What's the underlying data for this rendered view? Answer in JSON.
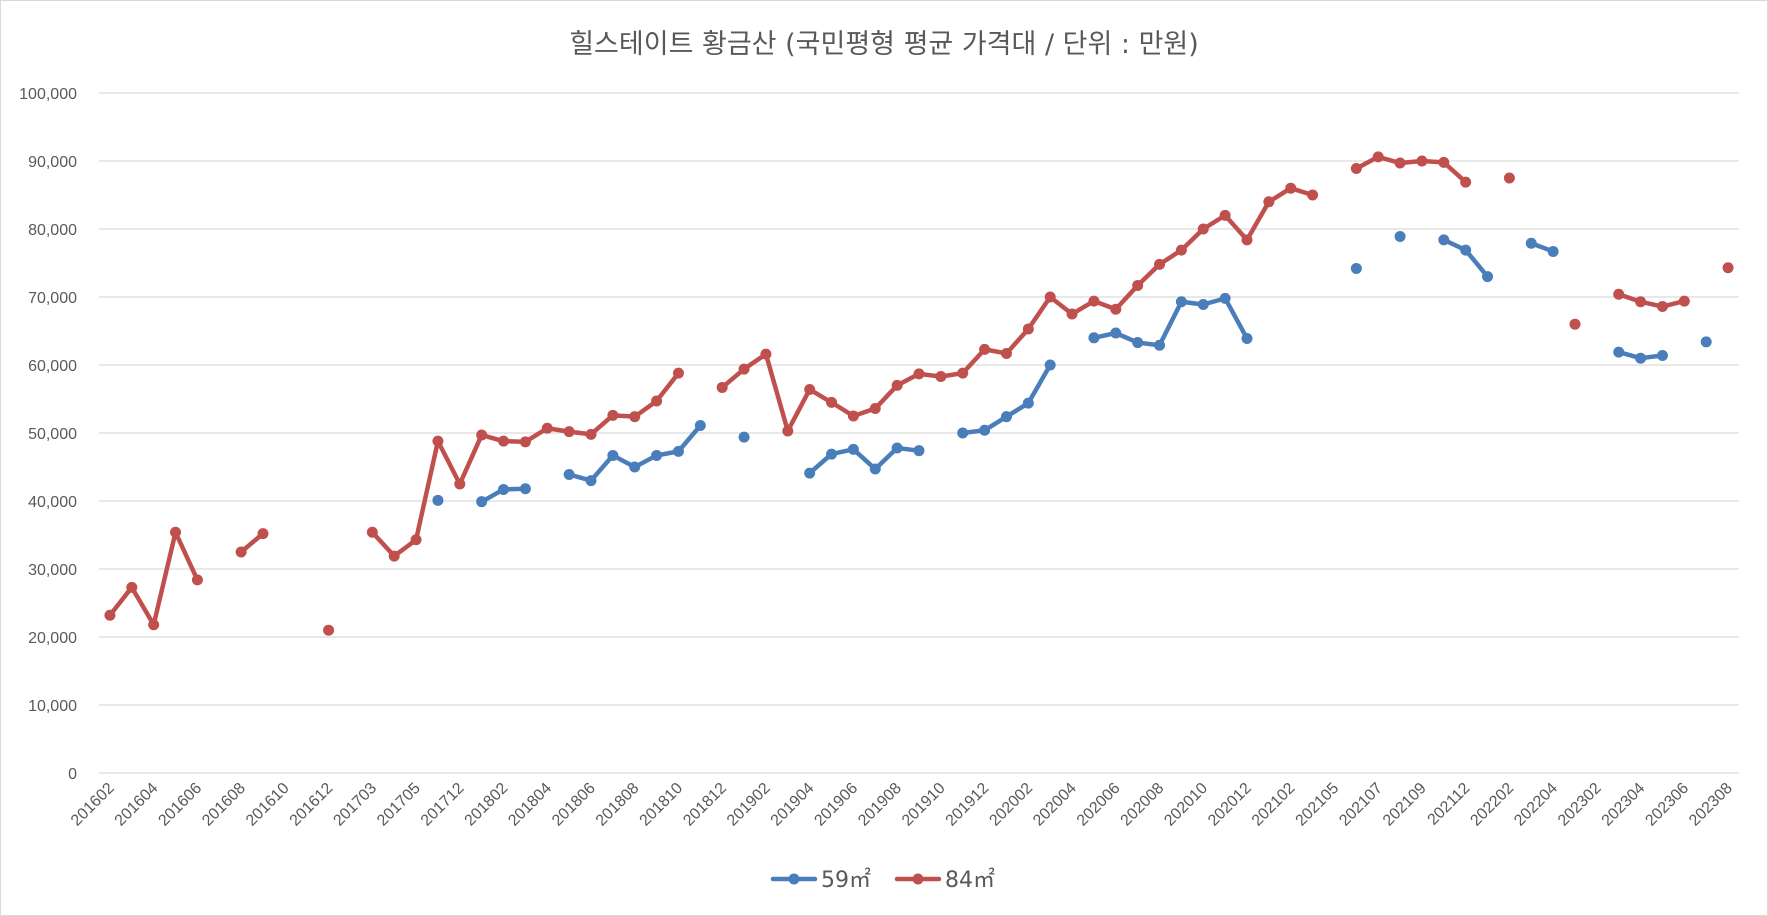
{
  "chart_data": {
    "type": "line",
    "title": "힐스테이트 황금산 (국민평형 평균 가격대 / 단위 : 만원)",
    "xlabel": "",
    "ylabel": "",
    "ylim": [
      0,
      100000
    ],
    "yticks": [
      0,
      10000,
      20000,
      30000,
      40000,
      50000,
      60000,
      70000,
      80000,
      90000,
      100000
    ],
    "ytick_labels": [
      "0",
      "10,000",
      "20,000",
      "30,000",
      "40,000",
      "50,000",
      "60,000",
      "70,000",
      "80,000",
      "90,000",
      "100,000"
    ],
    "grid": true,
    "legend_position": "bottom",
    "categories": [
      "201602",
      "201603",
      "201604",
      "201605",
      "201606",
      "201607",
      "201608",
      "201609",
      "201610",
      "201611",
      "201612",
      "201701",
      "201703",
      "201704",
      "201705",
      "201706",
      "201712",
      "201801",
      "201802",
      "201803",
      "201804",
      "201805",
      "201806",
      "201807",
      "201808",
      "201809",
      "201810",
      "201811",
      "201812",
      "201901",
      "201902",
      "201903",
      "201904",
      "201905",
      "201906",
      "201907",
      "201908",
      "201909",
      "201910",
      "201911",
      "201912",
      "202001",
      "202002",
      "202003",
      "202004",
      "202005",
      "202006",
      "202007",
      "202008",
      "202009",
      "202010",
      "202011",
      "202012",
      "202101",
      "202102",
      "202103",
      "202105",
      "202106",
      "202107",
      "202108",
      "202109",
      "202110",
      "202112",
      "202201",
      "202202",
      "202203",
      "202204",
      "202205",
      "202302",
      "202303",
      "202304",
      "202305",
      "202306",
      "202307",
      "202308"
    ],
    "xtick_labels": [
      "201602",
      "201604",
      "201606",
      "201608",
      "201610",
      "201612",
      "201703",
      "201705",
      "201712",
      "201802",
      "201804",
      "201806",
      "201808",
      "201810",
      "201812",
      "201902",
      "201904",
      "201906",
      "201908",
      "201910",
      "201912",
      "202002",
      "202004",
      "202006",
      "202008",
      "202010",
      "202012",
      "202102",
      "202105",
      "202107",
      "202109",
      "202112",
      "202202",
      "202204",
      "202302",
      "202304",
      "202306",
      "202308"
    ],
    "series": [
      {
        "name": "59㎡",
        "color": "#4a7ebb",
        "values": [
          null,
          null,
          null,
          null,
          null,
          null,
          null,
          null,
          null,
          null,
          null,
          null,
          null,
          null,
          null,
          40100,
          null,
          39900,
          41700,
          41800,
          null,
          43900,
          43000,
          46700,
          45000,
          46700,
          47300,
          51100,
          null,
          49400,
          null,
          null,
          44100,
          46900,
          47600,
          44700,
          47800,
          47400,
          null,
          50000,
          50400,
          52400,
          54400,
          60000,
          null,
          64000,
          64700,
          63300,
          62900,
          69300,
          68900,
          69800,
          63900,
          null,
          null,
          null,
          null,
          74200,
          null,
          78900,
          null,
          78400,
          76900,
          73000,
          null,
          77900,
          76700,
          null,
          null,
          61900,
          61000,
          61400,
          null,
          63400,
          null
        ],
        "show_marker": true
      },
      {
        "name": "84㎡",
        "color": "#c0504d",
        "values": [
          23200,
          27300,
          21800,
          35400,
          28400,
          null,
          32500,
          35200,
          null,
          null,
          21000,
          null,
          35400,
          31900,
          34300,
          48800,
          42500,
          49700,
          48800,
          48700,
          50700,
          50200,
          49800,
          52600,
          52400,
          54700,
          58800,
          null,
          56700,
          59400,
          61600,
          50300,
          56400,
          54500,
          52500,
          53600,
          57000,
          58700,
          58300,
          58800,
          62300,
          61700,
          65300,
          70000,
          67500,
          69400,
          68200,
          71700,
          74800,
          76900,
          80000,
          82000,
          78400,
          84000,
          86000,
          85000,
          null,
          88900,
          90600,
          89700,
          90000,
          89800,
          86900,
          null,
          87500,
          null,
          null,
          66000,
          null,
          70400,
          69300,
          68600,
          69400,
          null,
          74300
        ]
      }
    ]
  }
}
